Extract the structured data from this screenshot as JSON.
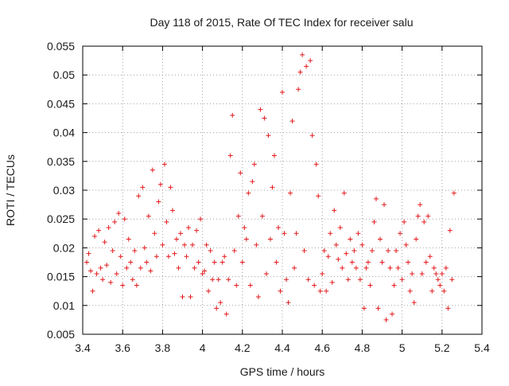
{
  "chart_data": {
    "type": "scatter",
    "title": "Day 118 of 2015, Rate Of TEC Index for receiver salu",
    "xlabel": "GPS time / hours",
    "ylabel": "ROTI / TECUs",
    "xlim": [
      3.4,
      5.4
    ],
    "ylim": [
      0.005,
      0.055
    ],
    "xticks": [
      3.4,
      3.6,
      3.8,
      4.0,
      4.2,
      4.4,
      4.6,
      4.8,
      5.0,
      5.2,
      5.4
    ],
    "xtick_labels": [
      "3.4",
      "3.6",
      "3.8",
      "4",
      "4.2",
      "4.4",
      "4.6",
      "4.8",
      "5",
      "5.2",
      "5.4"
    ],
    "yticks": [
      0.005,
      0.01,
      0.015,
      0.02,
      0.025,
      0.03,
      0.035,
      0.04,
      0.045,
      0.05,
      0.055
    ],
    "ytick_labels": [
      "0.005",
      "0.01",
      "0.015",
      "0.02",
      "0.025",
      "0.03",
      "0.035",
      "0.04",
      "0.045",
      "0.05",
      "0.055"
    ],
    "grid": true,
    "marker": "+",
    "color": "#e41a1c",
    "series": [
      {
        "x": [
          3.42,
          3.43,
          3.44,
          3.45,
          3.46,
          3.47,
          3.48,
          3.49,
          3.5,
          3.51,
          3.52,
          3.53,
          3.54,
          3.55,
          3.56,
          3.57,
          3.58,
          3.59,
          3.6,
          3.61,
          3.62,
          3.63,
          3.64,
          3.65,
          3.66,
          3.67,
          3.68,
          3.69,
          3.7,
          3.71,
          3.72,
          3.73,
          3.74,
          3.75,
          3.76,
          3.77,
          3.78,
          3.79,
          3.8,
          3.81,
          3.82,
          3.83,
          3.84,
          3.85,
          3.86,
          3.87,
          3.88,
          3.89,
          3.9,
          3.91,
          3.92,
          3.93,
          3.94,
          3.95,
          3.96,
          3.97,
          3.98,
          3.99,
          4.0,
          4.01,
          4.02,
          4.03,
          4.04,
          4.05,
          4.06,
          4.07,
          4.08,
          4.09,
          4.1,
          4.11,
          4.12,
          4.13,
          4.14,
          4.15,
          4.16,
          4.17,
          4.18,
          4.19,
          4.2,
          4.21,
          4.22,
          4.23,
          4.24,
          4.25,
          4.26,
          4.27,
          4.28,
          4.29,
          4.3,
          4.31,
          4.32,
          4.33,
          4.34,
          4.35,
          4.36,
          4.37,
          4.38,
          4.39,
          4.4,
          4.41,
          4.42,
          4.43,
          4.44,
          4.45,
          4.46,
          4.47,
          4.48,
          4.49,
          4.5,
          4.51,
          4.52,
          4.53,
          4.54,
          4.55,
          4.56,
          4.57,
          4.58,
          4.59,
          4.6,
          4.61,
          4.62,
          4.63,
          4.64,
          4.65,
          4.66,
          4.67,
          4.68,
          4.69,
          4.7,
          4.71,
          4.72,
          4.73,
          4.74,
          4.75,
          4.76,
          4.77,
          4.78,
          4.79,
          4.8,
          4.81,
          4.82,
          4.83,
          4.84,
          4.85,
          4.86,
          4.87,
          4.88,
          4.89,
          4.9,
          4.91,
          4.92,
          4.93,
          4.94,
          4.95,
          4.96,
          4.97,
          4.98,
          4.99,
          5.0,
          5.01,
          5.02,
          5.03,
          5.04,
          5.05,
          5.06,
          5.07,
          5.08,
          5.09,
          5.1,
          5.11,
          5.12,
          5.13,
          5.14,
          5.15,
          5.16,
          5.17,
          5.18,
          5.19,
          5.2,
          5.21,
          5.22,
          5.23,
          5.24,
          5.25,
          5.26
        ],
        "y": [
          0.0175,
          0.019,
          0.016,
          0.0125,
          0.022,
          0.0155,
          0.023,
          0.0165,
          0.0145,
          0.021,
          0.017,
          0.0235,
          0.014,
          0.0195,
          0.0245,
          0.0155,
          0.026,
          0.0185,
          0.0135,
          0.025,
          0.0165,
          0.0215,
          0.0175,
          0.0145,
          0.0195,
          0.0135,
          0.029,
          0.0165,
          0.0305,
          0.02,
          0.0175,
          0.0255,
          0.016,
          0.0335,
          0.0225,
          0.0185,
          0.028,
          0.031,
          0.0205,
          0.0345,
          0.0245,
          0.0185,
          0.0305,
          0.0265,
          0.019,
          0.0215,
          0.0165,
          0.0225,
          0.0115,
          0.0205,
          0.0185,
          0.0235,
          0.0115,
          0.0205,
          0.0165,
          0.023,
          0.0175,
          0.025,
          0.0155,
          0.016,
          0.0205,
          0.0125,
          0.0195,
          0.0145,
          0.0175,
          0.0095,
          0.0145,
          0.0105,
          0.0175,
          0.0185,
          0.0085,
          0.0145,
          0.036,
          0.043,
          0.0195,
          0.0135,
          0.0255,
          0.033,
          0.0175,
          0.0235,
          0.0215,
          0.0295,
          0.0135,
          0.0315,
          0.0345,
          0.0205,
          0.0115,
          0.044,
          0.0255,
          0.0425,
          0.0155,
          0.0395,
          0.0215,
          0.0305,
          0.036,
          0.0175,
          0.0235,
          0.0125,
          0.047,
          0.0225,
          0.0145,
          0.0105,
          0.0295,
          0.042,
          0.0165,
          0.0225,
          0.0475,
          0.0505,
          0.0535,
          0.0195,
          0.0515,
          0.0145,
          0.0525,
          0.0395,
          0.0135,
          0.0345,
          0.029,
          0.0125,
          0.0155,
          0.0195,
          0.0125,
          0.0185,
          0.0225,
          0.014,
          0.0265,
          0.0205,
          0.018,
          0.0235,
          0.0165,
          0.0295,
          0.019,
          0.0145,
          0.0215,
          0.0175,
          0.0195,
          0.0165,
          0.0225,
          0.0145,
          0.0205,
          0.0095,
          0.0165,
          0.0175,
          0.0135,
          0.0195,
          0.0245,
          0.0285,
          0.0095,
          0.0215,
          0.0175,
          0.0275,
          0.0075,
          0.0195,
          0.0165,
          0.0085,
          0.0135,
          0.0195,
          0.0165,
          0.0225,
          0.0145,
          0.0245,
          0.0205,
          0.0175,
          0.0125,
          0.0155,
          0.0105,
          0.0215,
          0.0255,
          0.0275,
          0.0155,
          0.0245,
          0.0175,
          0.0255,
          0.0185,
          0.0125,
          0.0165,
          0.0155,
          0.0145,
          0.0135,
          0.0155,
          0.0125,
          0.0165,
          0.0095,
          0.023,
          0.0145,
          0.0295
        ]
      }
    ]
  }
}
